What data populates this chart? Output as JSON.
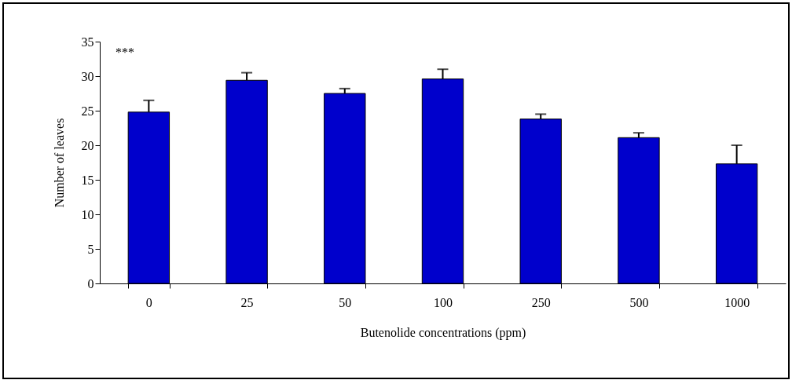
{
  "chart_data": {
    "type": "bar",
    "xlabel": "Butenolide concentrations (ppm)",
    "ylabel": "Number of leaves",
    "categories": [
      "0",
      "25",
      "50",
      "100",
      "250",
      "500",
      "1000"
    ],
    "values": [
      24.8,
      29.4,
      27.5,
      29.6,
      23.8,
      21.1,
      17.3
    ],
    "errors": [
      1.7,
      1.1,
      0.7,
      1.4,
      0.7,
      0.7,
      2.7
    ],
    "color": "#0000cc",
    "ylim": [
      0,
      35
    ],
    "yticks": [
      0,
      5,
      10,
      15,
      20,
      25,
      30,
      35
    ],
    "annotations": [
      "***"
    ]
  }
}
